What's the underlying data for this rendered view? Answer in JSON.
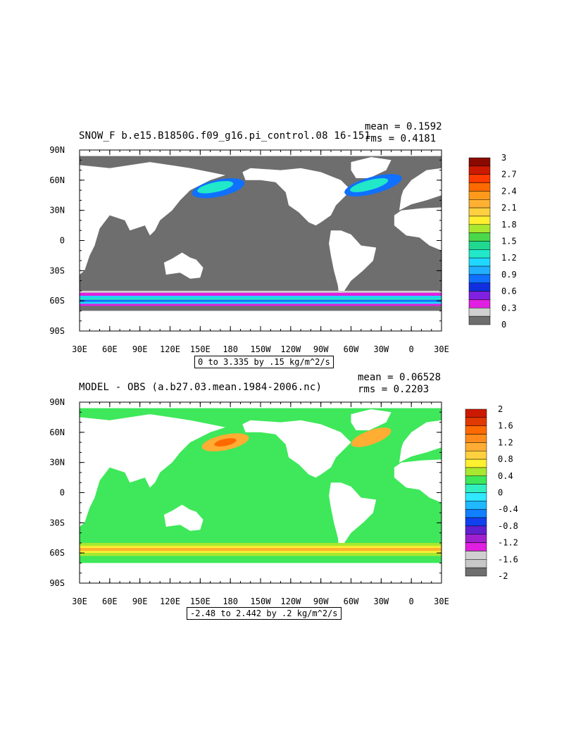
{
  "chart_data": [
    {
      "type": "heatmap",
      "title": "SNOW_F b.e15.B1850G.f09_g16.pi_control.08 16-151",
      "stats": {
        "mean": "mean = 0.1592",
        "rms": "rms = 0.4181"
      },
      "xticks": [
        "30E",
        "60E",
        "90E",
        "120E",
        "150E",
        "180",
        "150W",
        "120W",
        "90W",
        "60W",
        "30W",
        "0",
        "30E"
      ],
      "yticks": [
        "90N",
        "60N",
        "30N",
        "0",
        "30S",
        "60S",
        "90S"
      ],
      "xlim": [
        30,
        390
      ],
      "ylim": [
        -90,
        90
      ],
      "contour_info": "0 to 3.335 by .15 kg/m^2/s",
      "colorbar": {
        "labels": [
          "3",
          "2.7",
          "2.4",
          "2.1",
          "1.8",
          "1.5",
          "1.2",
          "0.9",
          "0.6",
          "0.3",
          "0"
        ],
        "colors": [
          "#8b0a00",
          "#cc1a00",
          "#ff3b00",
          "#ff6a00",
          "#ff9a1a",
          "#ffb030",
          "#ffd040",
          "#ffef30",
          "#a8e830",
          "#4ad84a",
          "#20d890",
          "#20e8c8",
          "#20d8ff",
          "#20b0ff",
          "#1070ff",
          "#1030e0",
          "#8020e0",
          "#e020e0",
          "#d0d0d0",
          "#6e6e6e"
        ]
      },
      "features": {
        "ocean_color": "#6e6e6e",
        "land_color": "#ffffff"
      }
    },
    {
      "type": "heatmap",
      "title": "MODEL - OBS (a.b27.03.mean.1984-2006.nc)",
      "stats": {
        "mean": "mean = 0.06528",
        "rms": "rms = 0.2203"
      },
      "xticks": [
        "30E",
        "60E",
        "90E",
        "120E",
        "150E",
        "180",
        "150W",
        "120W",
        "90W",
        "60W",
        "30W",
        "0",
        "30E"
      ],
      "yticks": [
        "90N",
        "60N",
        "30N",
        "0",
        "30S",
        "60S",
        "90S"
      ],
      "xlim": [
        30,
        390
      ],
      "ylim": [
        -90,
        90
      ],
      "contour_info": "-2.48 to 2.442 by .2 kg/m^2/s",
      "colorbar": {
        "labels": [
          "2",
          "1.6",
          "1.2",
          "0.8",
          "0.4",
          "0",
          "-0.4",
          "-0.8",
          "-1.2",
          "-1.6",
          "-2"
        ],
        "colors": [
          "#cc1a00",
          "#e03a00",
          "#ff6a00",
          "#ff8c1a",
          "#ffad33",
          "#ffd040",
          "#fff030",
          "#a8e830",
          "#3ee85a",
          "#30f0c0",
          "#30e8ff",
          "#20b8ff",
          "#1080ff",
          "#1040f0",
          "#6020d0",
          "#a020d0",
          "#e020e0",
          "#d0d0d0",
          "#c8c8c8",
          "#6e6e6e"
        ]
      },
      "features": {
        "ocean_color": "#3ee85a",
        "land_color": "#ffffff"
      }
    }
  ]
}
